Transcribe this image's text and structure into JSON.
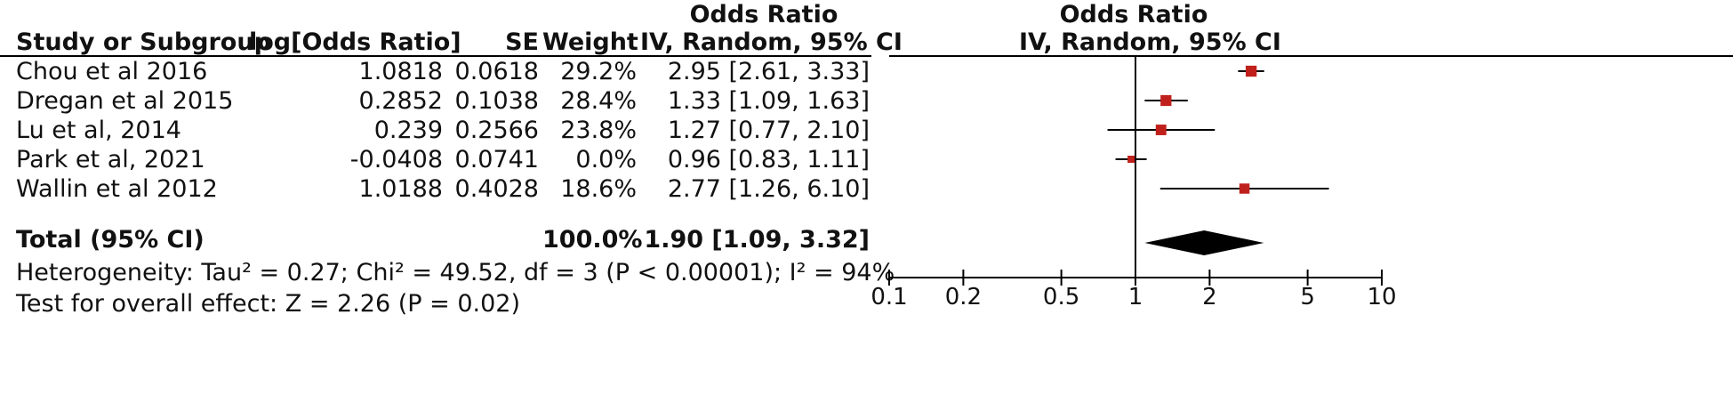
{
  "header": {
    "group_label_left": "Odds Ratio",
    "group_label_right": "Odds Ratio",
    "col_study": "Study or Subgroup",
    "col_logor": "log[Odds Ratio]",
    "col_se": "SE",
    "col_weight": "Weight",
    "col_ci": "IV, Random, 95% CI",
    "col_ci_right": "IV, Random, 95% CI"
  },
  "studies": [
    {
      "name": "Chou et al 2016",
      "logor": "1.0818",
      "se": "0.0618",
      "weight": "29.2%",
      "ci": "2.95 [2.61, 3.33]"
    },
    {
      "name": "Dregan et al 2015",
      "logor": "0.2852",
      "se": "0.1038",
      "weight": "28.4%",
      "ci": "1.33 [1.09, 1.63]"
    },
    {
      "name": "Lu et al, 2014",
      "logor": "0.239",
      "se": "0.2566",
      "weight": "23.8%",
      "ci": "1.27 [0.77, 2.10]"
    },
    {
      "name": "Park et al, 2021",
      "logor": "-0.0408",
      "se": "0.0741",
      "weight": "0.0%",
      "ci": "0.96 [0.83, 1.11]"
    },
    {
      "name": "Wallin et al 2012",
      "logor": "1.0188",
      "se": "0.4028",
      "weight": "18.6%",
      "ci": "2.77 [1.26, 6.10]"
    }
  ],
  "total": {
    "label": "Total (95% CI)",
    "weight": "100.0%",
    "ci": "1.90 [1.09, 3.32]"
  },
  "heterogeneity": "Heterogeneity: Tau² = 0.27; Chi² = 49.52, df = 3 (P < 0.00001); I² = 94%",
  "overall_effect": "Test for overall effect: Z = 2.26 (P = 0.02)",
  "colors": {
    "marker": "#c0201c",
    "diamond": "#000000",
    "line": "#000000"
  },
  "chart_data": {
    "type": "forest",
    "scale": "log",
    "xlim": [
      0.1,
      10
    ],
    "ticks": [
      0.1,
      0.2,
      0.5,
      1,
      2,
      5,
      10
    ],
    "tick_labels": [
      "0.1",
      "0.2",
      "0.5",
      "1",
      "2",
      "5",
      "10"
    ],
    "null_line": 1,
    "points": [
      {
        "study": "Chou et al 2016",
        "or": 2.95,
        "lo": 2.61,
        "hi": 3.33,
        "weight": 29.2
      },
      {
        "study": "Dregan et al 2015",
        "or": 1.33,
        "lo": 1.09,
        "hi": 1.63,
        "weight": 28.4
      },
      {
        "study": "Lu et al, 2014",
        "or": 1.27,
        "lo": 0.77,
        "hi": 2.1,
        "weight": 23.8
      },
      {
        "study": "Park et al, 2021",
        "or": 0.96,
        "lo": 0.83,
        "hi": 1.11,
        "weight": 0.0
      },
      {
        "study": "Wallin et al 2012",
        "or": 2.77,
        "lo": 1.26,
        "hi": 6.1,
        "weight": 18.6
      }
    ],
    "total": {
      "or": 1.9,
      "lo": 1.09,
      "hi": 3.32
    }
  }
}
